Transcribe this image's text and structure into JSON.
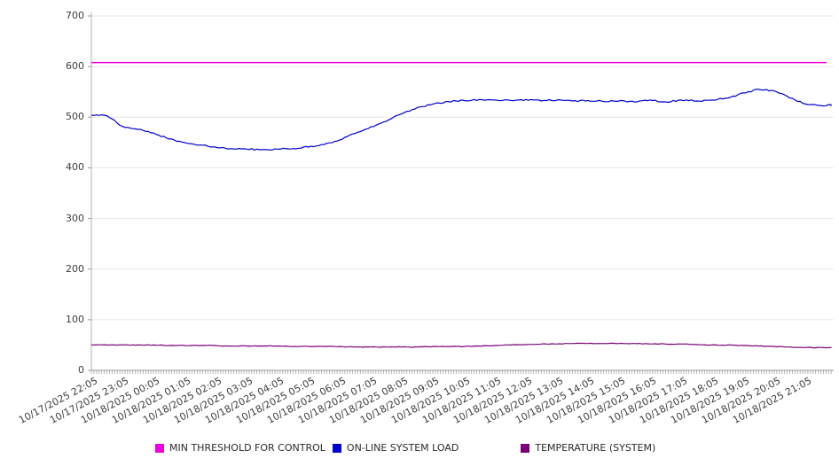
{
  "chart_data": {
    "type": "line",
    "title": "",
    "xlabel": "",
    "ylabel": "",
    "ylim": [
      0,
      700
    ],
    "yticks": [
      0,
      100,
      200,
      300,
      400,
      500,
      600,
      700
    ],
    "ytick_labels": [
      "0",
      "100",
      "200",
      "300",
      "400",
      "500",
      "600",
      "700"
    ],
    "grid": true,
    "legend_position": "bottom",
    "x_tick_labels": [
      "10/17/2025 22:05",
      "10/17/2025 23:05",
      "10/18/2025 00:05",
      "10/18/2025 01:05",
      "10/18/2025 02:05",
      "10/18/2025 03:05",
      "10/18/2025 04:05",
      "10/18/2025 05:05",
      "10/18/2025 06:05",
      "10/18/2025 07:05",
      "10/18/2025 08:05",
      "10/18/2025 09:05",
      "10/18/2025 10:05",
      "10/18/2025 11:05",
      "10/18/2025 12:05",
      "10/18/2025 13:05",
      "10/18/2025 14:05",
      "10/18/2025 15:05",
      "10/18/2025 16:05",
      "10/18/2025 17:05",
      "10/18/2025 18:05",
      "10/18/2025 19:05",
      "10/18/2025 20:05",
      "10/18/2025 21:05"
    ],
    "series": [
      {
        "name": "MIN THRESHOLD FOR CONTROL",
        "color": "#ee00dd",
        "kind": "threshold",
        "value": 608
      },
      {
        "name": "ON-LINE SYSTEM LOAD",
        "color": "#0000cc",
        "kind": "line",
        "sample_interval_minutes": 30,
        "values": [
          504,
          503,
          482,
          476,
          469,
          457,
          450,
          445,
          441,
          438,
          437,
          436,
          437,
          438,
          441,
          446,
          455,
          468,
          481,
          492,
          507,
          519,
          526,
          531,
          533,
          535,
          534,
          533,
          535,
          532,
          534,
          532,
          533,
          531,
          532,
          530,
          534,
          530,
          534,
          532,
          534,
          538,
          548,
          555,
          552,
          538,
          526,
          523,
          524
        ]
      },
      {
        "name": "TEMPERATURE (SYSTEM)",
        "color": "#7a0079",
        "kind": "line",
        "sample_interval_minutes": 30,
        "values": [
          50,
          50,
          50,
          50,
          50,
          49,
          49,
          49,
          49,
          48,
          48,
          48,
          48,
          47,
          47,
          47,
          47,
          46,
          46,
          46,
          46,
          46,
          47,
          47,
          47,
          48,
          49,
          50,
          51,
          52,
          52,
          53,
          53,
          53,
          53,
          53,
          52,
          52,
          52,
          51,
          50,
          50,
          49,
          48,
          47,
          46,
          45,
          45,
          45
        ]
      }
    ]
  }
}
